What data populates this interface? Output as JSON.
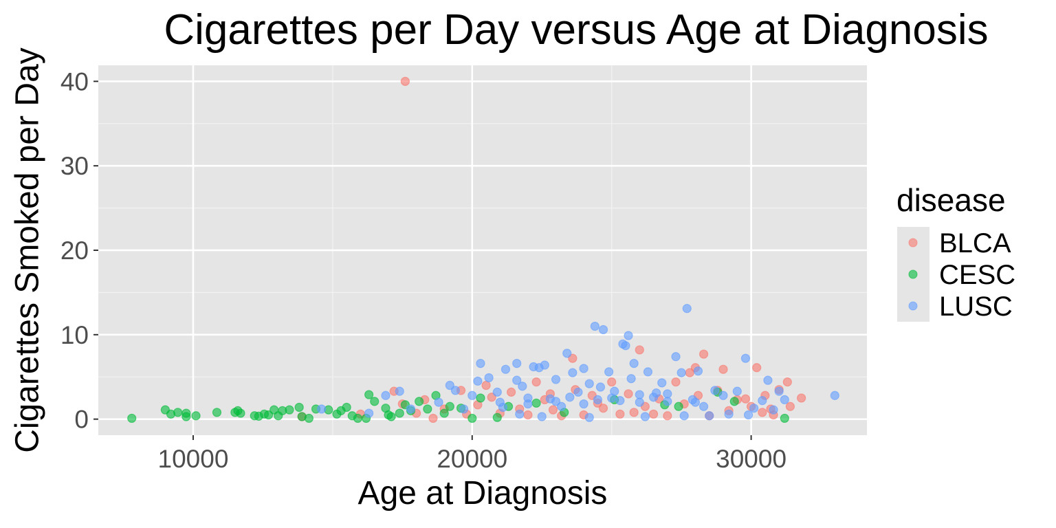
{
  "chart_data": {
    "type": "scatter",
    "title": "Cigarettes per Day versus Age at Diagnosis",
    "xlabel": "Age at Diagnosis",
    "ylabel": "Cigarettes Smoked per Day",
    "xlim": [
      6600,
      34150
    ],
    "ylim": [
      -1.9,
      41.9
    ],
    "xticks": [
      10000,
      20000,
      30000
    ],
    "xtick_labels": [
      "10000",
      "20000",
      "30000"
    ],
    "yticks": [
      0,
      10,
      20,
      30,
      40
    ],
    "ytick_labels": [
      "0",
      "10",
      "20",
      "30",
      "40"
    ],
    "grid": true,
    "legend": {
      "title": "disease",
      "position": "right"
    },
    "series": [
      {
        "name": "BLCA",
        "color": "#F8766D",
        "points": [
          [
            17600,
            40
          ],
          [
            13900,
            0.3
          ],
          [
            16000,
            0.6
          ],
          [
            17200,
            3.3
          ],
          [
            17500,
            1.8
          ],
          [
            18000,
            0.7
          ],
          [
            18600,
            0.1
          ],
          [
            18300,
            2.3
          ],
          [
            19000,
            1.2
          ],
          [
            19600,
            3.4
          ],
          [
            19800,
            0.6
          ],
          [
            20200,
            1.7
          ],
          [
            20700,
            2.6
          ],
          [
            21000,
            0.7
          ],
          [
            21400,
            3.2
          ],
          [
            21700,
            1.2
          ],
          [
            22000,
            0.5
          ],
          [
            22300,
            4.4
          ],
          [
            22600,
            2.3
          ],
          [
            22900,
            1.1
          ],
          [
            23200,
            0.4
          ],
          [
            23600,
            7.2
          ],
          [
            23700,
            3.5
          ],
          [
            24000,
            0.5
          ],
          [
            24300,
            2.8
          ],
          [
            24700,
            1.3
          ],
          [
            25000,
            4.4
          ],
          [
            25300,
            0.6
          ],
          [
            25600,
            3.0
          ],
          [
            26000,
            8.2
          ],
          [
            26200,
            1.5
          ],
          [
            26500,
            0.6
          ],
          [
            26700,
            2.4
          ],
          [
            27000,
            0.4
          ],
          [
            27300,
            4.4
          ],
          [
            27600,
            1.8
          ],
          [
            28000,
            6.1
          ],
          [
            28100,
            2.8
          ],
          [
            28300,
            7.7
          ],
          [
            28500,
            0.4
          ],
          [
            28800,
            3.4
          ],
          [
            29000,
            5.9
          ],
          [
            29200,
            1.0
          ],
          [
            29500,
            2.3
          ],
          [
            29800,
            2.4
          ],
          [
            30000,
            1.5
          ],
          [
            30200,
            6.1
          ],
          [
            30400,
            0.8
          ],
          [
            30500,
            2.8
          ],
          [
            30700,
            1.2
          ],
          [
            31000,
            3.5
          ],
          [
            31300,
            4.4
          ],
          [
            31400,
            1.5
          ],
          [
            31800,
            2.5
          ],
          [
            30800,
            0.5
          ],
          [
            27800,
            5.5
          ],
          [
            25800,
            0.8
          ],
          [
            24500,
            1.9
          ],
          [
            22800,
            3.0
          ],
          [
            20500,
            4.0
          ]
        ]
      },
      {
        "name": "CESC",
        "color": "#00BA38",
        "points": [
          [
            7800,
            0.1
          ],
          [
            9000,
            1.1
          ],
          [
            9200,
            0.6
          ],
          [
            9450,
            0.8
          ],
          [
            9750,
            0.7
          ],
          [
            9750,
            0.3
          ],
          [
            10100,
            0.4
          ],
          [
            10850,
            0.8
          ],
          [
            11500,
            0.8
          ],
          [
            11600,
            1.0
          ],
          [
            11700,
            0.7
          ],
          [
            12200,
            0.4
          ],
          [
            12350,
            0.35
          ],
          [
            12550,
            0.6
          ],
          [
            12700,
            0.5
          ],
          [
            12900,
            1.1
          ],
          [
            13050,
            0.4
          ],
          [
            13200,
            1.0
          ],
          [
            13450,
            1.1
          ],
          [
            13800,
            1.4
          ],
          [
            13900,
            0.3
          ],
          [
            14150,
            0.1
          ],
          [
            14400,
            1.2
          ],
          [
            14850,
            1.1
          ],
          [
            15150,
            0.6
          ],
          [
            15300,
            1.0
          ],
          [
            15500,
            1.4
          ],
          [
            15700,
            0.4
          ],
          [
            15900,
            0.1
          ],
          [
            16200,
            0.1
          ],
          [
            16300,
            2.9
          ],
          [
            16500,
            2.1
          ],
          [
            16900,
            1.3
          ],
          [
            17100,
            0.3
          ],
          [
            17400,
            0.7
          ],
          [
            17600,
            1.7
          ],
          [
            17800,
            1.0
          ],
          [
            18100,
            2.1
          ],
          [
            18700,
            2.8
          ],
          [
            19000,
            0.7
          ],
          [
            19200,
            1.5
          ],
          [
            19600,
            1.3
          ],
          [
            20000,
            0.1
          ],
          [
            20300,
            2.5
          ],
          [
            20900,
            0.2
          ],
          [
            21300,
            1.5
          ],
          [
            22300,
            1.9
          ],
          [
            23300,
            0.8
          ],
          [
            25100,
            2.3
          ],
          [
            26900,
            1.7
          ],
          [
            27400,
            1.5
          ],
          [
            28800,
            3.2
          ],
          [
            29400,
            2.1
          ],
          [
            31200,
            0.1
          ],
          [
            17000,
            0.5
          ],
          [
            18400,
            1.2
          ]
        ]
      },
      {
        "name": "LUSC",
        "color": "#619CFF",
        "points": [
          [
            14600,
            1.2
          ],
          [
            16300,
            0.7
          ],
          [
            16900,
            2.8
          ],
          [
            17400,
            3.3
          ],
          [
            17800,
            1.2
          ],
          [
            18800,
            2.0
          ],
          [
            19200,
            4.0
          ],
          [
            19400,
            3.4
          ],
          [
            19700,
            1.2
          ],
          [
            20000,
            2.8
          ],
          [
            20200,
            4.5
          ],
          [
            20300,
            6.6
          ],
          [
            20600,
            4.9
          ],
          [
            20900,
            3.2
          ],
          [
            21100,
            1.4
          ],
          [
            21200,
            5.9
          ],
          [
            21600,
            4.6
          ],
          [
            21600,
            6.6
          ],
          [
            21800,
            3.9
          ],
          [
            22000,
            1.8
          ],
          [
            22200,
            6.2
          ],
          [
            22400,
            6.1
          ],
          [
            22600,
            6.4
          ],
          [
            22800,
            2.4
          ],
          [
            23000,
            4.7
          ],
          [
            23200,
            1.5
          ],
          [
            23400,
            7.8
          ],
          [
            23600,
            5.5
          ],
          [
            23800,
            3.2
          ],
          [
            24000,
            6.0
          ],
          [
            24200,
            4.2
          ],
          [
            24400,
            11.0
          ],
          [
            24500,
            2.3
          ],
          [
            24700,
            10.6
          ],
          [
            24900,
            5.6
          ],
          [
            25100,
            3.3
          ],
          [
            25400,
            8.9
          ],
          [
            25500,
            8.7
          ],
          [
            25600,
            9.9
          ],
          [
            25700,
            4.8
          ],
          [
            25800,
            6.6
          ],
          [
            26000,
            2.0
          ],
          [
            26200,
            0.3
          ],
          [
            26300,
            5.6
          ],
          [
            26600,
            3.1
          ],
          [
            26800,
            4.3
          ],
          [
            27000,
            2.1
          ],
          [
            27300,
            7.4
          ],
          [
            27500,
            5.5
          ],
          [
            27700,
            13.1
          ],
          [
            27900,
            2.3
          ],
          [
            28100,
            5.7
          ],
          [
            28300,
            1.5
          ],
          [
            28500,
            0.4
          ],
          [
            28700,
            3.4
          ],
          [
            29000,
            2.8
          ],
          [
            29200,
            0.6
          ],
          [
            29500,
            3.3
          ],
          [
            29800,
            7.2
          ],
          [
            29900,
            0.5
          ],
          [
            30100,
            1.3
          ],
          [
            30400,
            2.2
          ],
          [
            30600,
            4.6
          ],
          [
            30800,
            1.1
          ],
          [
            31000,
            3.3
          ],
          [
            31200,
            2.3
          ],
          [
            33000,
            2.8
          ],
          [
            22000,
            2.5
          ],
          [
            23000,
            2.1
          ],
          [
            24000,
            1.8
          ],
          [
            25000,
            2.5
          ],
          [
            26000,
            2.9
          ],
          [
            27000,
            3.0
          ],
          [
            28000,
            2.0
          ],
          [
            21000,
            2.0
          ],
          [
            24600,
            3.8
          ],
          [
            23500,
            2.6
          ],
          [
            26500,
            2.6
          ],
          [
            25300,
            2.2
          ],
          [
            22500,
            0.3
          ],
          [
            21700,
            0.6
          ],
          [
            27600,
            0.4
          ],
          [
            24200,
            0.2
          ]
        ]
      }
    ]
  }
}
